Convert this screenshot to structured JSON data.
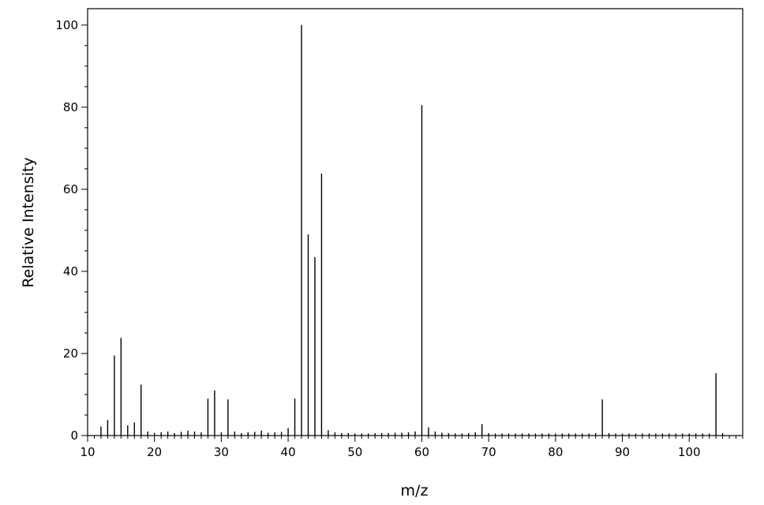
{
  "chart_data": {
    "type": "bar",
    "xlabel": "m/z",
    "ylabel": "Relative Intensity",
    "xlim": [
      10,
      108
    ],
    "ylim": [
      0,
      104
    ],
    "x_ticks": [
      10,
      20,
      30,
      40,
      50,
      60,
      70,
      80,
      90,
      100
    ],
    "x_tick_labels": [
      "10",
      "20",
      "30",
      "40",
      "50",
      "60",
      "70",
      "80",
      "90",
      "100"
    ],
    "y_ticks": [
      0,
      20,
      40,
      60,
      80,
      100
    ],
    "y_tick_labels": [
      "0",
      "20",
      "40",
      "60",
      "80",
      "100"
    ],
    "grid": false,
    "series": [
      {
        "x": [
          12,
          13,
          14,
          15,
          16,
          17,
          18,
          19,
          20,
          21,
          22,
          23,
          24,
          25,
          26,
          27,
          28,
          29,
          30,
          31,
          32,
          33,
          34,
          35,
          36,
          37,
          38,
          39,
          40,
          41,
          42,
          43,
          44,
          45,
          46,
          47,
          48,
          49,
          50,
          51,
          52,
          53,
          54,
          55,
          56,
          57,
          58,
          59,
          60,
          61,
          62,
          63,
          64,
          65,
          66,
          67,
          68,
          69,
          70,
          71,
          72,
          73,
          74,
          75,
          76,
          77,
          78,
          79,
          80,
          81,
          82,
          83,
          84,
          85,
          86,
          87,
          88,
          89,
          90,
          91,
          92,
          93,
          94,
          95,
          96,
          97,
          98,
          99,
          100,
          101,
          102,
          103,
          104,
          105
        ],
        "values": [
          2.2,
          3.8,
          19.5,
          23.8,
          2.5,
          3.2,
          12.4,
          1.0,
          0.6,
          0.8,
          1.0,
          0.6,
          0.9,
          1.2,
          1.0,
          0.8,
          9.0,
          11.0,
          0.8,
          8.8,
          1.0,
          0.6,
          0.8,
          0.9,
          1.2,
          0.7,
          0.8,
          0.9,
          1.8,
          9.0,
          100,
          49.0,
          43.5,
          63.8,
          1.3,
          0.8,
          0.6,
          0.6,
          0.5,
          0.5,
          0.5,
          0.6,
          0.6,
          0.6,
          0.7,
          0.7,
          0.8,
          1.0,
          80.5,
          2.0,
          1.0,
          0.7,
          0.6,
          0.5,
          0.5,
          0.6,
          0.8,
          2.8,
          0.6,
          0.5,
          0.5,
          0.5,
          0.5,
          0.5,
          0.5,
          0.5,
          0.5,
          0.5,
          0.5,
          0.5,
          0.5,
          0.5,
          0.5,
          0.5,
          0.6,
          8.8,
          0.6,
          0.5,
          0.5,
          0.5,
          0.5,
          0.5,
          0.5,
          0.5,
          0.5,
          0.5,
          0.5,
          0.5,
          0.5,
          0.5,
          0.5,
          0.5,
          15.2,
          0.6
        ]
      }
    ],
    "colors": {
      "axis": "#000000",
      "peak": "#000000",
      "background": "#ffffff"
    }
  }
}
